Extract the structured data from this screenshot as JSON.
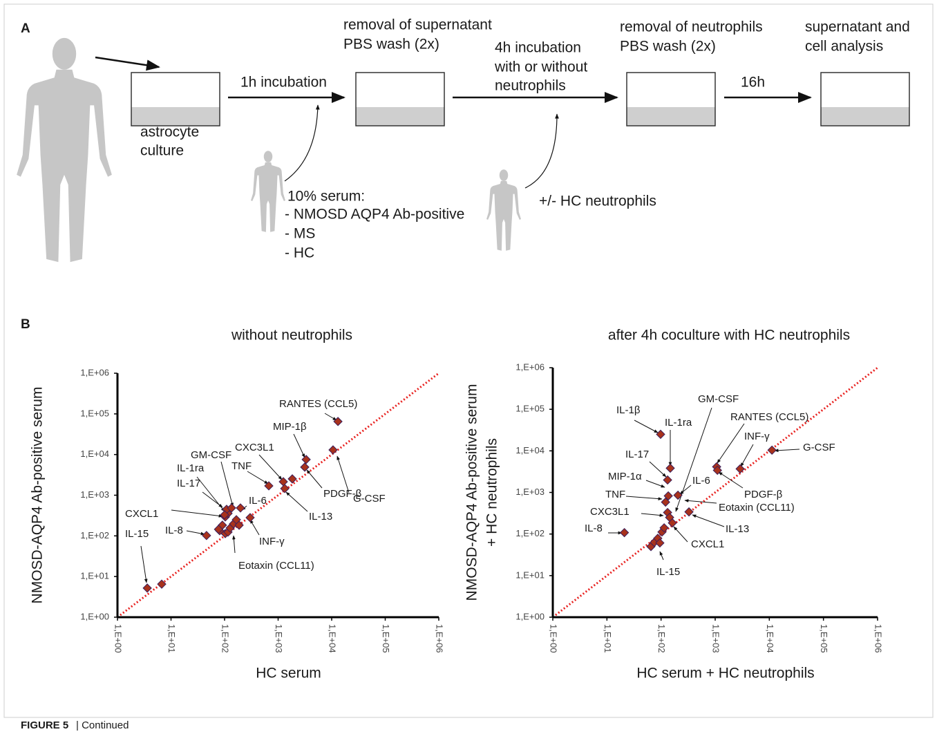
{
  "panel_a": {
    "label": "A",
    "texts": [
      "removal of supernatant",
      "PBS wash (2x)",
      "1h incubation",
      "astrocyte",
      "culture",
      "4h incubation",
      "with or without",
      "neutrophils",
      "removal of neutrophils",
      "PBS wash (2x)",
      "16h",
      "supernatant and",
      "cell analysis",
      "10% serum:",
      "- NMOSD AQP4 Ab-positive",
      "- MS",
      "- HC",
      "+/-  HC neutrophils"
    ]
  },
  "panel_b": {
    "label": "B"
  },
  "chart_data": [
    {
      "type": "scatter",
      "title": "without neutrophils",
      "x_label": "HC serum",
      "y_label": [
        "NMOSD-AQP4 Ab-positive serum"
      ],
      "log_scale": true,
      "color": "#a8321c",
      "diagonal_color": "#e8211f",
      "xlim": [
        1,
        1000000
      ],
      "ylim": [
        1,
        1000000
      ],
      "xticks": [
        {
          "value": 1,
          "label": "1,E+00"
        },
        {
          "value": 10,
          "label": "1,E+01"
        },
        {
          "value": 100,
          "label": "1,E+02"
        },
        {
          "value": 1000,
          "label": "1,E+03"
        },
        {
          "value": 10000,
          "label": "1,E+04"
        },
        {
          "value": 100000,
          "label": "1,E+05"
        },
        {
          "value": 1000000,
          "label": "1,E+06"
        }
      ],
      "yticks": [
        {
          "value": 1,
          "label": "1,E+00"
        },
        {
          "value": 10,
          "label": "1,E+01"
        },
        {
          "value": 100,
          "label": "1,E+02"
        },
        {
          "value": 1000,
          "label": "1,E+03"
        },
        {
          "value": 10000,
          "label": "1,E+04"
        },
        {
          "value": 100000,
          "label": "1,E+05"
        },
        {
          "value": 1000000,
          "label": "1,E+06"
        }
      ],
      "x": [
        3.6,
        6.7,
        46,
        81,
        91,
        77,
        103,
        116,
        127,
        147,
        166,
        187,
        103,
        116,
        109,
        100,
        135,
        198,
        300,
        670,
        1250,
        1840,
        1330,
        3140,
        3340,
        10600,
        13100
      ],
      "values": [
        5.2,
        6.5,
        102,
        134,
        183,
        145,
        114,
        124,
        156,
        198,
        250,
        183,
        292,
        356,
        450,
        329,
        486,
        486,
        281,
        1700,
        2150,
        2520,
        1460,
        4900,
        7550,
        13000,
        65000
      ],
      "annotations": [
        "RANTES (CCL5)",
        "MIP-1β",
        "CXC3L1",
        "TNF",
        "GM-CSF",
        "IL-1ra",
        "IL-17",
        "CXCL1",
        "IL-6",
        "IL-8",
        "IL-15",
        "INF-γ",
        "Eotaxin (CCL11)",
        "G-CSF",
        "PDGF-β",
        "IL-13"
      ]
    },
    {
      "type": "scatter",
      "title": "after 4h coculture with HC neutrophils",
      "x_label": "HC serum + HC neutrophils",
      "y_label": [
        "NMOSD-AQP4 Ab-positive serum",
        "+ HC neutrophils"
      ],
      "log_scale": true,
      "color": "#a8321c",
      "diagonal_color": "#e8211f",
      "xlim": [
        1,
        1000000
      ],
      "ylim": [
        1,
        1000000
      ],
      "xticks": [
        {
          "value": 1,
          "label": "1,E+00"
        },
        {
          "value": 10,
          "label": "1,E+01"
        },
        {
          "value": 100,
          "label": "1,E+02"
        },
        {
          "value": 1000,
          "label": "1,E+03"
        },
        {
          "value": 10000,
          "label": "1,E+04"
        },
        {
          "value": 100000,
          "label": "1,E+05"
        },
        {
          "value": 1000000,
          "label": "1,E+06"
        }
      ],
      "yticks": [
        {
          "value": 1,
          "label": "1,E+00"
        },
        {
          "value": 10,
          "label": "1,E+01"
        },
        {
          "value": 100,
          "label": "1,E+02"
        },
        {
          "value": 1000,
          "label": "1,E+03"
        },
        {
          "value": 10000,
          "label": "1,E+04"
        },
        {
          "value": 100000,
          "label": "1,E+05"
        },
        {
          "value": 1000000,
          "label": "1,E+06"
        }
      ],
      "x": [
        21,
        65,
        75,
        87,
        95,
        104,
        114,
        132,
        144,
        162,
        121,
        136,
        132,
        148,
        98,
        205,
        328,
        1064,
        1100,
        2890,
        11200
      ],
      "values": [
        108,
        50,
        63,
        79,
        61,
        112,
        141,
        329,
        251,
        185,
        585,
        826,
        1995,
        3830,
        25000,
        857,
        341,
        4140,
        3410,
        3690,
        10400
      ],
      "annotations": [
        "IL-1β",
        "IL-1ra",
        "GM-CSF",
        "RANTES (CCL5)",
        "INF-γ",
        "G-CSF",
        "IL-17",
        "MIP-1α",
        "IL-6",
        "TNF",
        "PDGF-β",
        "Eotaxin (CCL11)",
        "CXC3L1",
        "IL-13",
        "IL-8",
        "CXCL1",
        "IL-15"
      ]
    }
  ],
  "caption": {
    "label": "FIGURE 5",
    "text": "| Continued"
  }
}
